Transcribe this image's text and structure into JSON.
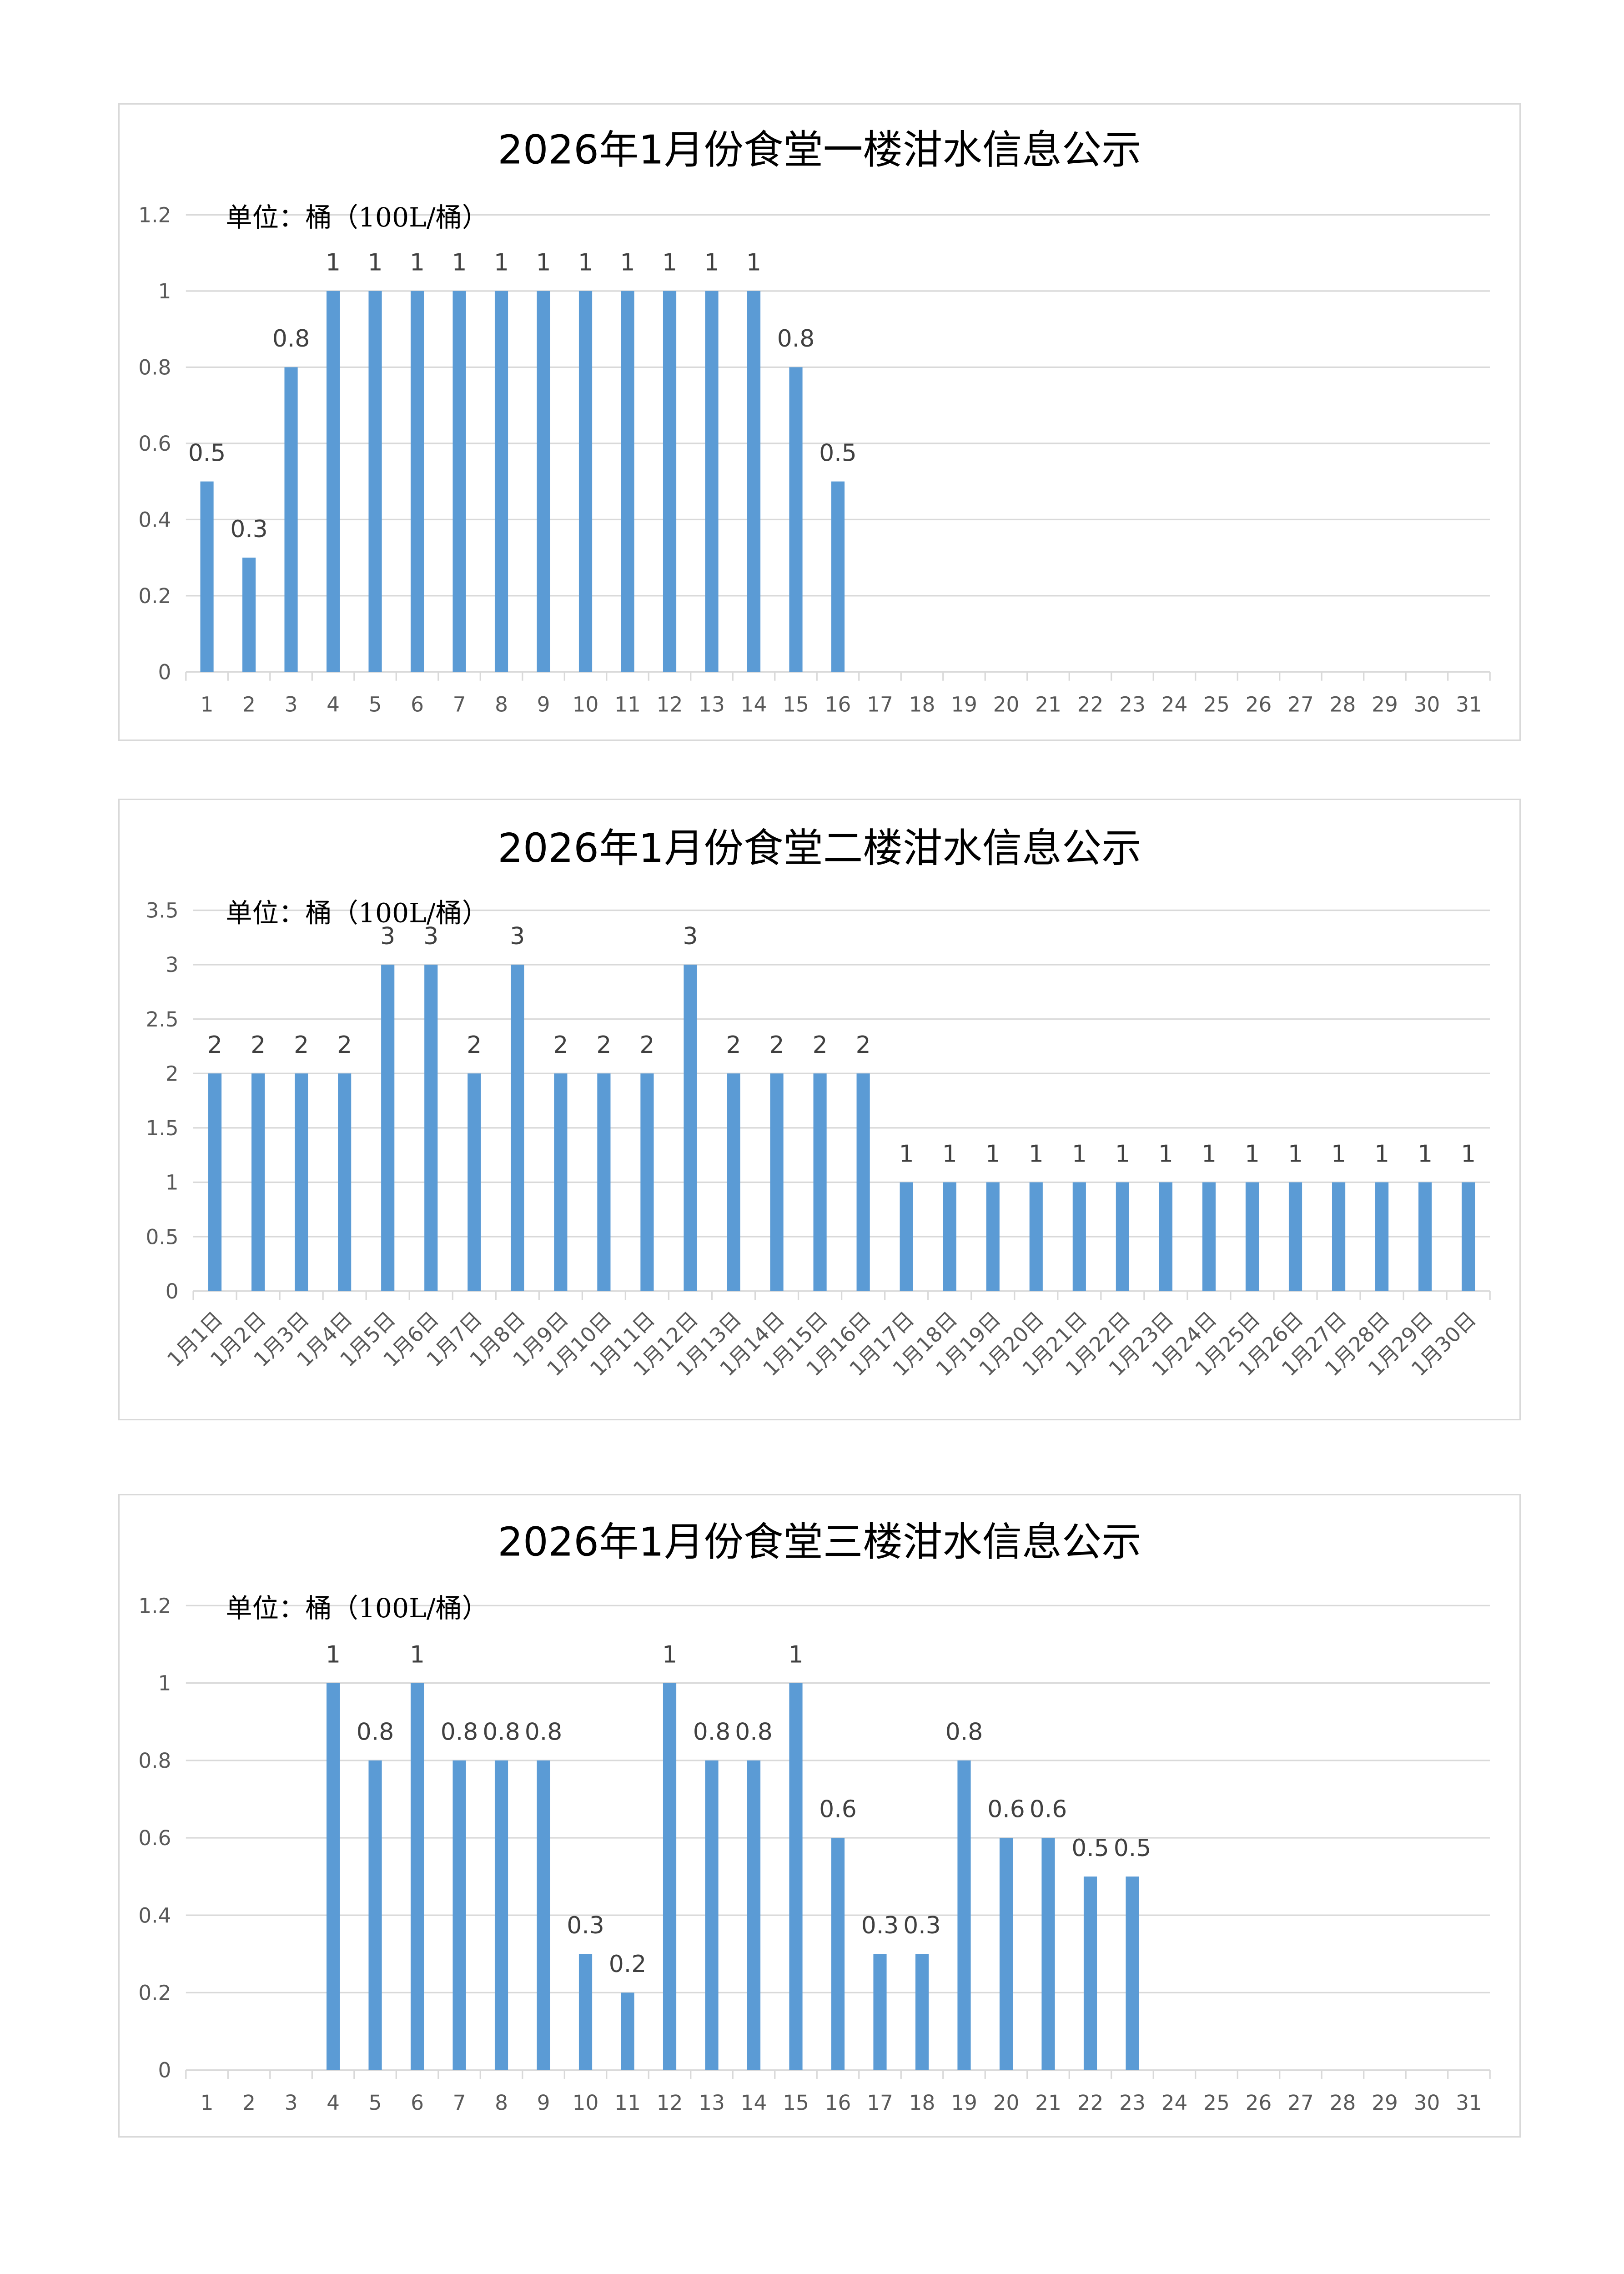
{
  "chart_data": [
    {
      "type": "bar",
      "title": "2026年1月份食堂一楼泔水信息公示",
      "unit_label": "单位：桶（100L/桶）",
      "color": "#5b9bd5",
      "ylim": [
        0,
        1.2
      ],
      "yticks": [
        "0",
        "0.2",
        "0.4",
        "0.6",
        "0.8",
        "1",
        "1.2"
      ],
      "grid": true,
      "categories": [
        "1",
        "2",
        "3",
        "4",
        "5",
        "6",
        "7",
        "8",
        "9",
        "10",
        "11",
        "12",
        "13",
        "14",
        "15",
        "16",
        "17",
        "18",
        "19",
        "20",
        "21",
        "22",
        "23",
        "24",
        "25",
        "26",
        "27",
        "28",
        "29",
        "30",
        "31"
      ],
      "values": [
        0.5,
        0.3,
        0.8,
        1,
        1,
        1,
        1,
        1,
        1,
        1,
        1,
        1,
        1,
        1,
        0.8,
        0.5,
        null,
        null,
        null,
        null,
        null,
        null,
        null,
        null,
        null,
        null,
        null,
        null,
        null,
        null,
        null
      ]
    },
    {
      "type": "bar",
      "title": "2026年1月份食堂二楼泔水信息公示",
      "unit_label": "单位：桶（100L/桶）",
      "color": "#5b9bd5",
      "ylim": [
        0,
        3.5
      ],
      "yticks": [
        "0",
        "0.5",
        "1",
        "1.5",
        "2",
        "2.5",
        "3",
        "3.5"
      ],
      "grid": true,
      "categories": [
        "1月1日",
        "1月2日",
        "1月3日",
        "1月4日",
        "1月5日",
        "1月6日",
        "1月7日",
        "1月8日",
        "1月9日",
        "1月10日",
        "1月11日",
        "1月12日",
        "1月13日",
        "1月14日",
        "1月15日",
        "1月16日",
        "1月17日",
        "1月18日",
        "1月19日",
        "1月20日",
        "1月21日",
        "1月22日",
        "1月23日",
        "1月24日",
        "1月25日",
        "1月26日",
        "1月27日",
        "1月28日",
        "1月29日",
        "1月30日"
      ],
      "values": [
        2,
        2,
        2,
        2,
        3,
        3,
        2,
        3,
        2,
        2,
        2,
        3,
        2,
        2,
        2,
        2,
        1,
        1,
        1,
        1,
        1,
        1,
        1,
        1,
        1,
        1,
        1,
        1,
        1,
        1
      ]
    },
    {
      "type": "bar",
      "title": "2026年1月份食堂三楼泔水信息公示",
      "unit_label": "单位：桶（100L/桶）",
      "color": "#5b9bd5",
      "ylim": [
        0,
        1.2
      ],
      "yticks": [
        "0",
        "0.2",
        "0.4",
        "0.6",
        "0.8",
        "1",
        "1.2"
      ],
      "grid": true,
      "categories": [
        "1",
        "2",
        "3",
        "4",
        "5",
        "6",
        "7",
        "8",
        "9",
        "10",
        "11",
        "12",
        "13",
        "14",
        "15",
        "16",
        "17",
        "18",
        "19",
        "20",
        "21",
        "22",
        "23",
        "24",
        "25",
        "26",
        "27",
        "28",
        "29",
        "30",
        "31"
      ],
      "values": [
        null,
        null,
        null,
        1,
        0.8,
        1,
        0.8,
        0.8,
        0.8,
        0.3,
        0.2,
        1,
        0.8,
        0.8,
        1,
        0.6,
        0.3,
        0.3,
        0.8,
        0.6,
        0.6,
        0.5,
        0.5,
        null,
        null,
        null,
        null,
        null,
        null,
        null,
        null
      ]
    }
  ]
}
